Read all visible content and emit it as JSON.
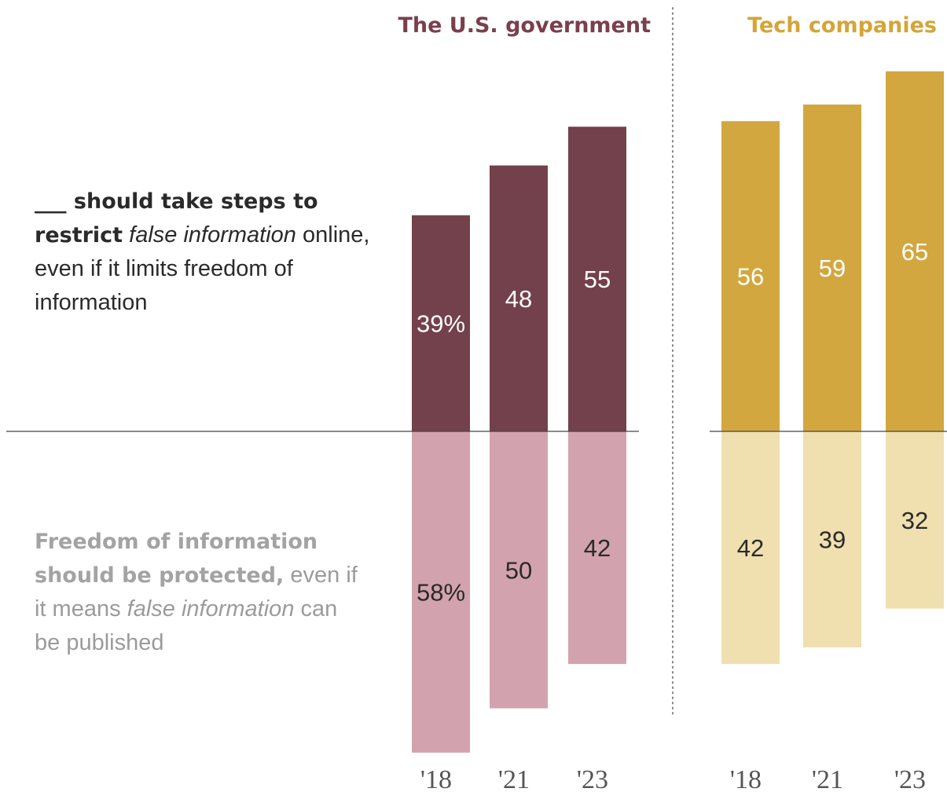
{
  "legend": {
    "restrict_bold": "___ should take steps to restrict",
    "restrict_italic": "false information",
    "restrict_rest": "online, even if it limits freedom of information",
    "freedom_bold": "Freedom of information should be protected,",
    "freedom_rest_1": "even if it means",
    "freedom_italic": "false information",
    "freedom_rest_2": "can be published"
  },
  "chart_data": {
    "type": "bar",
    "categories": [
      "'18",
      "'21",
      "'23"
    ],
    "panels": [
      {
        "title": "The U.S. government",
        "title_color": "#7a3f4c",
        "series": [
          {
            "values": [
              39,
              48,
              55
            ],
            "labels": [
              "39%",
              "48",
              "55"
            ],
            "color": "#73414b",
            "label_color": "#ffffff",
            "direction": "up"
          },
          {
            "values": [
              58,
              50,
              42
            ],
            "labels": [
              "58%",
              "50",
              "42"
            ],
            "color": "#d2a3ae",
            "label_color": "#2a2a2a",
            "direction": "down"
          }
        ]
      },
      {
        "title": "Tech companies",
        "title_color": "#d4a537",
        "series": [
          {
            "values": [
              56,
              59,
              65
            ],
            "labels": [
              "56",
              "59",
              "65"
            ],
            "color": "#d3a73f",
            "label_color": "#ffffff",
            "direction": "up"
          },
          {
            "values": [
              42,
              39,
              32
            ],
            "labels": [
              "42",
              "39",
              "32"
            ],
            "color": "#f0dfaf",
            "label_color": "#2a2a2a",
            "direction": "down"
          }
        ]
      }
    ]
  }
}
